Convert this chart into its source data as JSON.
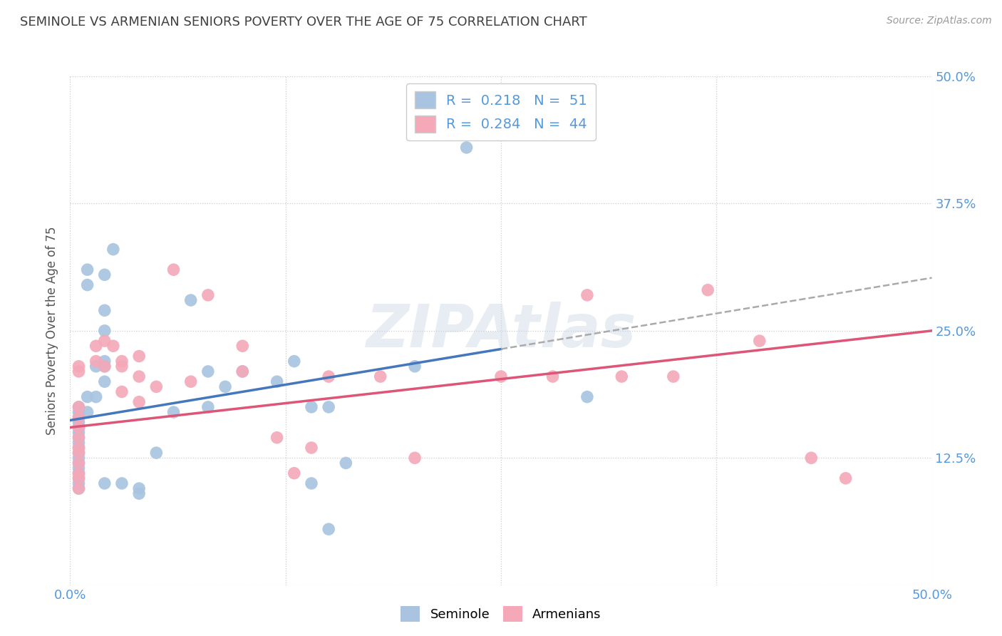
{
  "title": "SEMINOLE VS ARMENIAN SENIORS POVERTY OVER THE AGE OF 75 CORRELATION CHART",
  "source": "Source: ZipAtlas.com",
  "ylabel": "Seniors Poverty Over the Age of 75",
  "xlim": [
    0.0,
    0.5
  ],
  "ylim": [
    0.0,
    0.5
  ],
  "xticks": [
    0.0,
    0.125,
    0.25,
    0.375,
    0.5
  ],
  "xticklabels": [
    "0.0%",
    "",
    "",
    "",
    "50.0%"
  ],
  "yticks": [
    0.0,
    0.125,
    0.25,
    0.375,
    0.5
  ],
  "yticklabels_right": [
    "",
    "12.5%",
    "25.0%",
    "37.5%",
    "50.0%"
  ],
  "seminole_R": 0.218,
  "seminole_N": 51,
  "armenian_R": 0.284,
  "armenian_N": 44,
  "seminole_color": "#a8c4e0",
  "armenian_color": "#f4a8b8",
  "seminole_line_color": "#4477bb",
  "armenian_line_color": "#dd5577",
  "dashed_line_color": "#aabbcc",
  "seminole_scatter": [
    [
      0.02,
      0.305
    ],
    [
      0.025,
      0.33
    ],
    [
      0.01,
      0.17
    ],
    [
      0.01,
      0.295
    ],
    [
      0.01,
      0.31
    ],
    [
      0.02,
      0.27
    ],
    [
      0.02,
      0.25
    ],
    [
      0.02,
      0.22
    ],
    [
      0.02,
      0.215
    ],
    [
      0.015,
      0.215
    ],
    [
      0.02,
      0.2
    ],
    [
      0.015,
      0.185
    ],
    [
      0.01,
      0.185
    ],
    [
      0.005,
      0.175
    ],
    [
      0.005,
      0.17
    ],
    [
      0.005,
      0.165
    ],
    [
      0.005,
      0.16
    ],
    [
      0.005,
      0.155
    ],
    [
      0.005,
      0.15
    ],
    [
      0.005,
      0.145
    ],
    [
      0.005,
      0.14
    ],
    [
      0.005,
      0.135
    ],
    [
      0.005,
      0.13
    ],
    [
      0.005,
      0.125
    ],
    [
      0.005,
      0.12
    ],
    [
      0.005,
      0.115
    ],
    [
      0.005,
      0.11
    ],
    [
      0.005,
      0.105
    ],
    [
      0.005,
      0.1
    ],
    [
      0.005,
      0.095
    ],
    [
      0.02,
      0.1
    ],
    [
      0.03,
      0.1
    ],
    [
      0.04,
      0.095
    ],
    [
      0.04,
      0.09
    ],
    [
      0.05,
      0.13
    ],
    [
      0.06,
      0.17
    ],
    [
      0.07,
      0.28
    ],
    [
      0.08,
      0.21
    ],
    [
      0.08,
      0.175
    ],
    [
      0.09,
      0.195
    ],
    [
      0.1,
      0.21
    ],
    [
      0.12,
      0.2
    ],
    [
      0.13,
      0.22
    ],
    [
      0.14,
      0.175
    ],
    [
      0.15,
      0.175
    ],
    [
      0.14,
      0.1
    ],
    [
      0.16,
      0.12
    ],
    [
      0.2,
      0.215
    ],
    [
      0.23,
      0.43
    ],
    [
      0.3,
      0.185
    ],
    [
      0.15,
      0.055
    ]
  ],
  "armenian_scatter": [
    [
      0.005,
      0.215
    ],
    [
      0.005,
      0.21
    ],
    [
      0.005,
      0.175
    ],
    [
      0.005,
      0.165
    ],
    [
      0.005,
      0.155
    ],
    [
      0.005,
      0.145
    ],
    [
      0.005,
      0.135
    ],
    [
      0.005,
      0.13
    ],
    [
      0.005,
      0.12
    ],
    [
      0.005,
      0.11
    ],
    [
      0.005,
      0.105
    ],
    [
      0.005,
      0.095
    ],
    [
      0.015,
      0.235
    ],
    [
      0.015,
      0.22
    ],
    [
      0.02,
      0.24
    ],
    [
      0.025,
      0.235
    ],
    [
      0.02,
      0.215
    ],
    [
      0.03,
      0.22
    ],
    [
      0.03,
      0.215
    ],
    [
      0.03,
      0.19
    ],
    [
      0.04,
      0.225
    ],
    [
      0.04,
      0.205
    ],
    [
      0.04,
      0.18
    ],
    [
      0.05,
      0.195
    ],
    [
      0.06,
      0.31
    ],
    [
      0.07,
      0.2
    ],
    [
      0.08,
      0.285
    ],
    [
      0.1,
      0.235
    ],
    [
      0.1,
      0.21
    ],
    [
      0.12,
      0.145
    ],
    [
      0.13,
      0.11
    ],
    [
      0.14,
      0.135
    ],
    [
      0.15,
      0.205
    ],
    [
      0.18,
      0.205
    ],
    [
      0.2,
      0.125
    ],
    [
      0.25,
      0.205
    ],
    [
      0.28,
      0.205
    ],
    [
      0.3,
      0.285
    ],
    [
      0.32,
      0.205
    ],
    [
      0.35,
      0.205
    ],
    [
      0.37,
      0.29
    ],
    [
      0.4,
      0.24
    ],
    [
      0.43,
      0.125
    ],
    [
      0.45,
      0.105
    ]
  ],
  "watermark": "ZIPAtlas",
  "background_color": "#ffffff",
  "grid_color": "#cccccc",
  "title_color": "#404040",
  "tick_color": "#5599dd"
}
